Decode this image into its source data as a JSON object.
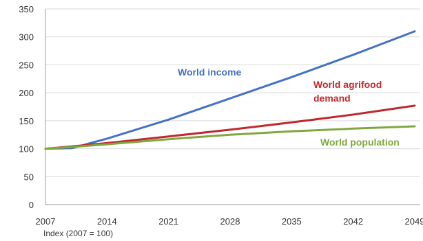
{
  "chart_data": {
    "type": "line",
    "x": [
      2007,
      2010,
      2014,
      2021,
      2028,
      2035,
      2042,
      2049
    ],
    "x_ticks": [
      "2007",
      "2014",
      "2021",
      "2028",
      "2035",
      "2042",
      "2049"
    ],
    "y_ticks": [
      "0",
      "50",
      "100",
      "150",
      "200",
      "250",
      "300",
      "350"
    ],
    "xlim": [
      2007,
      2049
    ],
    "ylim": [
      0,
      350
    ],
    "grid": "horizontal",
    "note": "Index (2007 = 100)",
    "series": [
      {
        "name": "World income",
        "label_lines": [
          "World income"
        ],
        "color": "#4472C4",
        "values": [
          100,
          101,
          118,
          152,
          190,
          228,
          268,
          310
        ]
      },
      {
        "name": "World agrifood demand",
        "label_lines": [
          "World agrifood",
          "demand"
        ],
        "color": "#C0282D",
        "values": [
          100,
          104,
          110,
          122,
          134,
          147,
          161,
          177
        ]
      },
      {
        "name": "World population",
        "label_lines": [
          "World population"
        ],
        "color": "#7EA83D",
        "values": [
          100,
          103,
          108,
          117,
          125,
          131,
          136,
          140
        ]
      }
    ]
  }
}
